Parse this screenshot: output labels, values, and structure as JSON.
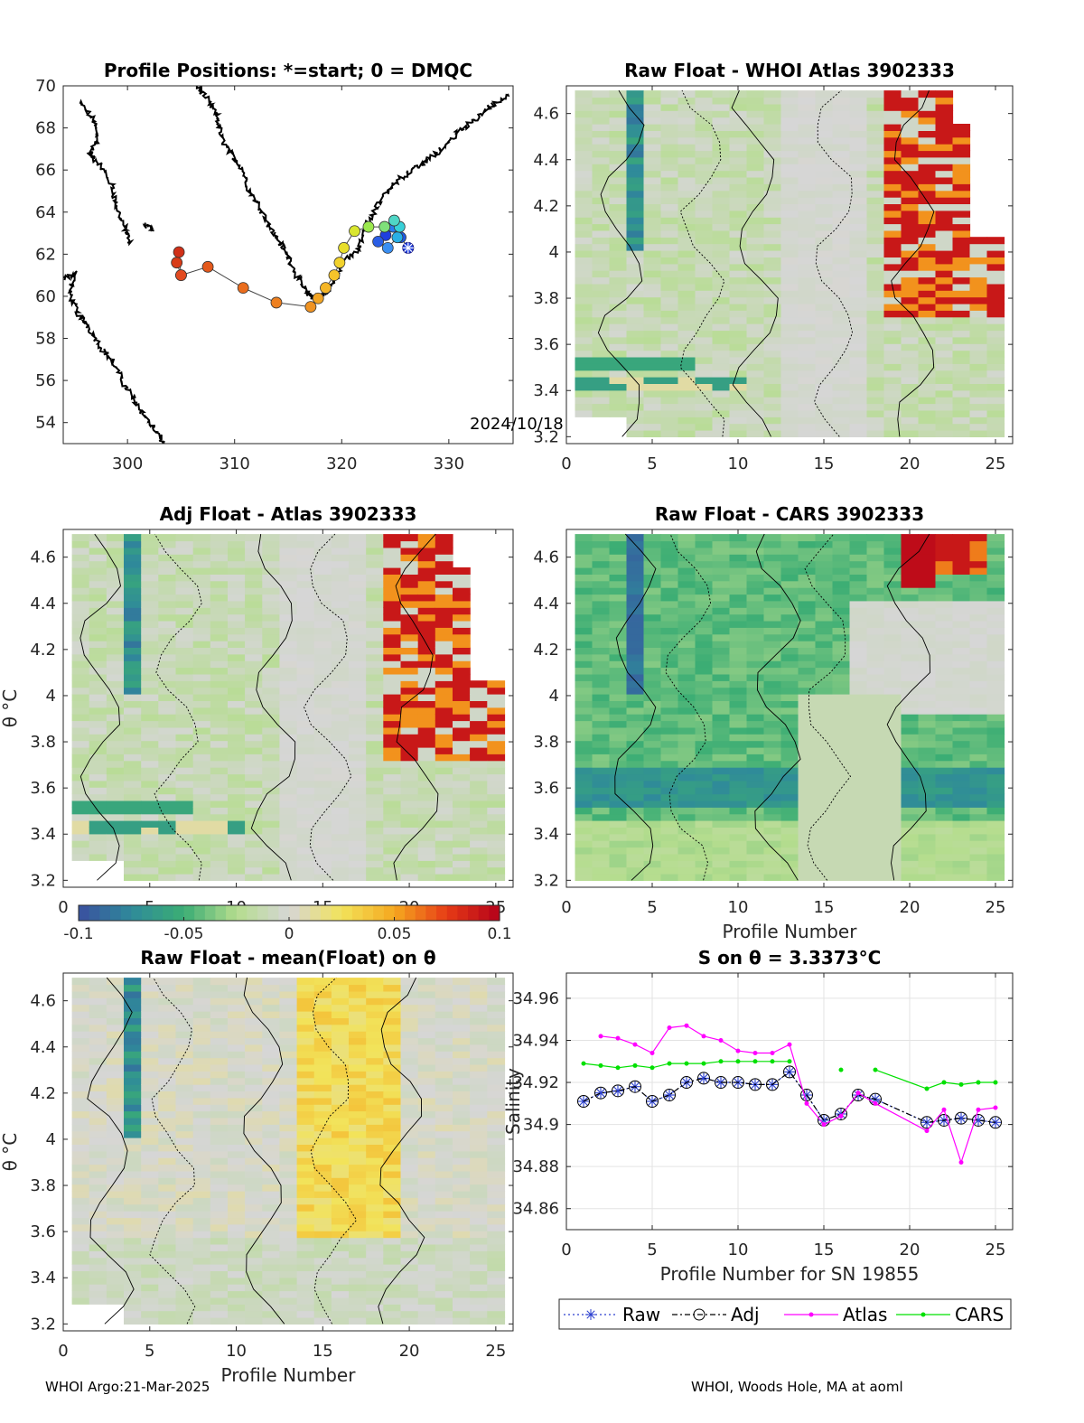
{
  "figure": {
    "footer_left": "WHOI Argo:21-Mar-2025",
    "footer_right": "WHOI, Woods Hole, MA at aoml"
  },
  "colorbar": {
    "ticks": [
      -0.1,
      -0.05,
      0,
      0.05,
      0.1
    ],
    "tick_labels": [
      "-0.1",
      "-0.05",
      "0",
      "0.05",
      "0.1"
    ],
    "colors": [
      "#3a4fa0",
      "#2f8a9a",
      "#3bad74",
      "#b5dd8e",
      "#d6d6d6",
      "#f2e35a",
      "#f5a81f",
      "#e63b16",
      "#b4001a"
    ]
  },
  "chart_data": [
    {
      "type": "scatter",
      "name": "map",
      "title": "Profile Positions: *=start; 0 = DMQC",
      "xlim": [
        294,
        336
      ],
      "ylim": [
        53,
        70
      ],
      "xticks": [
        300,
        310,
        320,
        330
      ],
      "yticks": [
        54,
        56,
        58,
        60,
        62,
        64,
        66,
        68,
        70
      ],
      "annotation": "2024/10/18",
      "coast_color": "#000000",
      "track": {
        "lon": [
          326.2,
          325.5,
          324.8,
          324.1,
          323.4,
          324.3,
          325.2,
          325.4,
          324.9,
          324.0,
          322.5,
          321.2,
          320.2,
          319.8,
          319.3,
          318.5,
          317.8,
          317.1,
          313.9,
          310.8,
          307.5,
          305.0,
          304.6,
          304.8,
          305.0
        ],
        "lat": [
          62.3,
          62.8,
          63.3,
          62.9,
          62.6,
          62.3,
          62.8,
          63.3,
          63.6,
          63.3,
          63.3,
          63.1,
          62.3,
          61.6,
          61.0,
          60.4,
          59.9,
          59.5,
          59.7,
          60.4,
          61.4,
          61.0,
          61.6,
          62.1,
          61.0
        ],
        "colors": [
          "#1f3fe0",
          "#1f5ae8",
          "#2a7df0",
          "#1f3fe0",
          "#2a5ee5",
          "#3a8ff2",
          "#2ab0e6",
          "#37d0d8",
          "#4fd6c6",
          "#7fe07a",
          "#9be84e",
          "#d9e62f",
          "#e8de2c",
          "#f2d22c",
          "#f5c42a",
          "#f5b627",
          "#f2a524",
          "#f09322",
          "#ee8020",
          "#ea6d1e",
          "#e4591c",
          "#df4a1a",
          "#d83c18",
          "#d03018",
          "#e24a20"
        ]
      }
    },
    {
      "type": "heatmap",
      "name": "raw-whoi",
      "title": "Raw Float - WHOI Atlas  3902333",
      "xlim": [
        0,
        26
      ],
      "ylim": [
        3.17,
        4.72
      ],
      "xticks": [
        0,
        5,
        10,
        15,
        20,
        25
      ],
      "yticks": [
        3.2,
        3.4,
        3.6,
        3.8,
        4,
        4.2,
        4.4,
        4.6
      ],
      "ylabel": "",
      "xlabel": "",
      "variant": "atlas"
    },
    {
      "type": "heatmap",
      "name": "adj-atlas",
      "title": "Adj Float - Atlas  3902333",
      "xlim": [
        0,
        26
      ],
      "ylim": [
        3.17,
        4.72
      ],
      "xticks": [
        0,
        5,
        10,
        15,
        20,
        25
      ],
      "yticks": [
        3.2,
        3.4,
        3.6,
        3.8,
        4,
        4.2,
        4.4,
        4.6
      ],
      "ylabel": "θ °C",
      "xlabel": "",
      "variant": "atlas"
    },
    {
      "type": "heatmap",
      "name": "raw-cars",
      "title": "Raw Float - CARS  3902333",
      "xlim": [
        0,
        26
      ],
      "ylim": [
        3.17,
        4.72
      ],
      "xticks": [
        0,
        5,
        10,
        15,
        20,
        25
      ],
      "yticks": [
        3.2,
        3.4,
        3.6,
        3.8,
        4,
        4.2,
        4.4,
        4.6
      ],
      "ylabel": "",
      "xlabel": "Profile Number",
      "variant": "cars"
    },
    {
      "type": "heatmap",
      "name": "raw-mean",
      "title": "Raw Float - mean(Float) on θ",
      "xlim": [
        0,
        26
      ],
      "ylim": [
        3.17,
        4.72
      ],
      "xticks": [
        0,
        5,
        10,
        15,
        20,
        25
      ],
      "yticks": [
        3.2,
        3.4,
        3.6,
        3.8,
        4,
        4.2,
        4.4,
        4.6
      ],
      "ylabel": "θ °C",
      "xlabel": "Profile Number",
      "variant": "mean"
    },
    {
      "type": "line",
      "name": "salinity",
      "title": "S on θ = 3.3373°C",
      "xlim": [
        0,
        26
      ],
      "ylim": [
        34.85,
        34.972
      ],
      "xticks": [
        0,
        5,
        10,
        15,
        20,
        25
      ],
      "yticks": [
        34.86,
        34.88,
        34.9,
        34.92,
        34.94,
        34.96
      ],
      "ytick_labels": [
        "34.86",
        "34.88",
        "34.9",
        "34.92",
        "34.94",
        "34.96"
      ],
      "xlabel": "Profile Number for SN 19855",
      "ylabel": "Salinity",
      "series": [
        {
          "name": "Raw",
          "color": "#2b3fcf",
          "x": [
            1,
            2,
            3,
            4,
            5,
            6,
            7,
            8,
            9,
            10,
            11,
            12,
            13,
            14,
            15,
            16,
            17,
            18,
            21,
            22,
            23,
            24,
            25
          ],
          "y": [
            34.911,
            34.915,
            34.916,
            34.918,
            34.911,
            34.914,
            34.92,
            34.922,
            34.92,
            34.92,
            34.919,
            34.919,
            34.925,
            34.914,
            34.902,
            34.905,
            34.914,
            34.912,
            34.901,
            34.902,
            34.903,
            34.902,
            34.901
          ]
        },
        {
          "name": "Adj",
          "color": "#000000",
          "x": [
            1,
            2,
            3,
            4,
            5,
            6,
            7,
            8,
            9,
            10,
            11,
            12,
            13,
            14,
            15,
            16,
            17,
            18,
            21,
            22,
            23,
            24,
            25
          ],
          "y": [
            34.911,
            34.915,
            34.916,
            34.918,
            34.911,
            34.914,
            34.92,
            34.922,
            34.92,
            34.92,
            34.919,
            34.919,
            34.925,
            34.914,
            34.902,
            34.905,
            34.914,
            34.912,
            34.901,
            34.902,
            34.903,
            34.902,
            34.901
          ]
        },
        {
          "name": "Atlas",
          "color": "#ff00ff",
          "x": [
            2,
            3,
            4,
            5,
            6,
            7,
            8,
            9,
            10,
            11,
            12,
            13,
            14,
            15,
            16,
            17,
            18,
            21,
            22,
            23,
            24,
            25
          ],
          "y": [
            34.942,
            34.941,
            34.938,
            34.934,
            34.946,
            34.947,
            34.942,
            34.94,
            34.935,
            34.934,
            34.934,
            34.938,
            34.91,
            34.9,
            34.904,
            34.915,
            34.91,
            34.897,
            34.907,
            34.882,
            34.907,
            34.908
          ]
        },
        {
          "name": "CARS",
          "color": "#00e000",
          "segments": [
            {
              "x": [
                1,
                2,
                3,
                4,
                5,
                6,
                7,
                8,
                9,
                10,
                11,
                12,
                13
              ],
              "y": [
                34.929,
                34.928,
                34.927,
                34.928,
                34.927,
                34.929,
                34.929,
                34.929,
                34.93,
                34.93,
                34.93,
                34.93,
                34.93
              ]
            },
            {
              "x": [
                16
              ],
              "y": [
                34.926
              ]
            },
            {
              "x": [
                18,
                21,
                22,
                23,
                24,
                25
              ],
              "y": [
                34.926,
                34.917,
                34.92,
                34.919,
                34.92,
                34.92
              ]
            }
          ]
        }
      ]
    }
  ]
}
